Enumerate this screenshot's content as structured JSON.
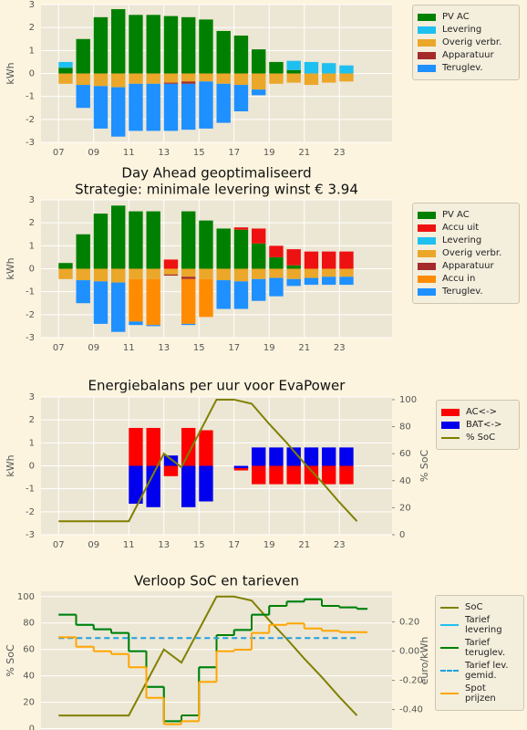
{
  "chart_data": [
    {
      "type": "bar",
      "stacked": true,
      "ylabel": "kWh",
      "grid": true,
      "legend": "right",
      "x": [
        7,
        8,
        9,
        10,
        11,
        12,
        13,
        14,
        15,
        16,
        17,
        18,
        19,
        20,
        21,
        22,
        23
      ],
      "xlim": [
        6,
        26
      ],
      "xticks": [
        {
          "value": 7,
          "label": "07"
        },
        {
          "value": 9,
          "label": "09"
        },
        11,
        13,
        15,
        17,
        19,
        21,
        23
      ],
      "ylim": [
        -3,
        3
      ],
      "yticks": [
        -3,
        -2,
        -1,
        0,
        1,
        2,
        3
      ],
      "series": [
        {
          "name": "PV AC",
          "color": "#008000",
          "values": [
            0.25,
            1.5,
            2.45,
            2.8,
            2.55,
            2.55,
            2.5,
            2.45,
            2.35,
            1.85,
            1.65,
            1.05,
            0.5,
            0.15,
            0,
            0,
            0
          ]
        },
        {
          "name": "Levering",
          "color": "#1ec0f0",
          "values": [
            0.25,
            0,
            0,
            0,
            0,
            0,
            0,
            0,
            0,
            0,
            0,
            0,
            0,
            0.4,
            0.5,
            0.45,
            0.35
          ]
        },
        {
          "name": "Overig verbr.",
          "color": "#eba72a",
          "values": [
            -0.45,
            -0.5,
            -0.55,
            -0.6,
            -0.45,
            -0.45,
            -0.4,
            -0.35,
            -0.35,
            -0.45,
            -0.5,
            -0.7,
            -0.45,
            -0.4,
            -0.5,
            -0.4,
            -0.35
          ]
        },
        {
          "name": "Apparatuur",
          "color": "#a52a2a",
          "values": [
            0,
            0,
            0,
            0,
            0,
            0,
            -0.05,
            -0.1,
            0,
            0,
            0,
            0,
            0,
            0,
            0,
            0,
            0
          ]
        },
        {
          "name": "Teruglev.",
          "color": "#1e90ff",
          "values": [
            0,
            -1.0,
            -1.85,
            -2.15,
            -2.05,
            -2.05,
            -2.05,
            -2.0,
            -2.05,
            -1.7,
            -1.15,
            -0.25,
            0,
            0,
            0,
            0,
            0
          ]
        }
      ]
    },
    {
      "type": "bar",
      "stacked": true,
      "title": "Day Ahead geoptimaliseerd",
      "subtitle": "Strategie: minimale levering winst € 3.94",
      "ylabel": "kWh",
      "grid": true,
      "legend": "right",
      "x": [
        7,
        8,
        9,
        10,
        11,
        12,
        13,
        14,
        15,
        16,
        17,
        18,
        19,
        20,
        21,
        22,
        23
      ],
      "xlim": [
        6,
        26
      ],
      "xticks": [
        {
          "value": 7,
          "label": "07"
        },
        {
          "value": 9,
          "label": "09"
        },
        11,
        13,
        15,
        17,
        19,
        21,
        23
      ],
      "ylim": [
        -3,
        3
      ],
      "yticks": [
        -3,
        -2,
        -1,
        0,
        1,
        2,
        3
      ],
      "series": [
        {
          "name": "PV AC",
          "color": "#008000",
          "values": [
            0.25,
            1.5,
            2.4,
            2.75,
            2.5,
            2.5,
            0,
            2.5,
            2.1,
            1.75,
            1.7,
            1.1,
            0.5,
            0.15,
            0,
            0,
            0
          ]
        },
        {
          "name": "Accu uit",
          "color": "#ee1111",
          "values": [
            0,
            0,
            0,
            0,
            0,
            0,
            0.4,
            0,
            0,
            0,
            0.1,
            0.65,
            0.5,
            0.7,
            0.75,
            0.75,
            0.75
          ]
        },
        {
          "name": "Levering",
          "color": "#1ec0f0",
          "values": [
            0,
            0,
            0,
            0,
            0,
            0,
            0,
            0,
            0,
            0,
            0,
            0,
            0,
            0,
            0,
            0,
            0
          ]
        },
        {
          "name": "Overig verbr.",
          "color": "#eba72a",
          "values": [
            -0.45,
            -0.5,
            -0.55,
            -0.6,
            -0.45,
            -0.45,
            -0.25,
            -0.35,
            -0.45,
            -0.5,
            -0.55,
            -0.45,
            -0.4,
            -0.45,
            -0.4,
            -0.35,
            -0.35
          ]
        },
        {
          "name": "Apparatuur",
          "color": "#a52a2a",
          "values": [
            0,
            0,
            0,
            0,
            0,
            0,
            -0.05,
            -0.1,
            0,
            0,
            0,
            0,
            0,
            0,
            0,
            0,
            0
          ]
        },
        {
          "name": "Accu in",
          "color": "#ff8c00",
          "values": [
            0,
            0,
            0,
            0,
            -1.85,
            -2.0,
            0,
            -1.95,
            -1.65,
            0,
            0,
            0,
            0,
            0,
            0,
            0,
            0
          ]
        },
        {
          "name": "Teruglev.",
          "color": "#1e90ff",
          "values": [
            0,
            -1.0,
            -1.85,
            -2.15,
            -0.15,
            -0.05,
            0,
            -0.05,
            0,
            -1.25,
            -1.2,
            -0.95,
            -0.8,
            -0.3,
            -0.3,
            -0.35,
            -0.35
          ]
        }
      ]
    },
    {
      "type": "bar",
      "stacked": false,
      "title": "Energiebalans per uur voor EvaPower",
      "ylabel": "kWh",
      "y2label": "% SoC",
      "grid": true,
      "legend": "right",
      "x": [
        7,
        8,
        9,
        10,
        11,
        12,
        13,
        14,
        15,
        16,
        17,
        18,
        19,
        20,
        21,
        22,
        23,
        24
      ],
      "xlim": [
        6,
        26
      ],
      "xticks": [
        {
          "value": 7,
          "label": "07"
        },
        {
          "value": 9,
          "label": "09"
        },
        11,
        13,
        15,
        17,
        19,
        21,
        23
      ],
      "ylim": [
        -3,
        3
      ],
      "yticks": [
        -3,
        -2,
        -1,
        0,
        1,
        2,
        3
      ],
      "y2lim": [
        0,
        102
      ],
      "y2ticks": [
        0,
        20,
        40,
        60,
        80,
        100
      ],
      "series": [
        {
          "name": "AC<->",
          "color": "#ff0000",
          "values": [
            0,
            0,
            0,
            0,
            1.65,
            1.65,
            -0.45,
            1.65,
            1.55,
            0,
            -0.2,
            -0.8,
            -0.8,
            -0.8,
            -0.8,
            -0.8,
            -0.8,
            null
          ]
        },
        {
          "name": "BAT<->",
          "color": "#0000ee",
          "values": [
            0,
            0,
            0,
            0,
            -1.65,
            -1.8,
            0.45,
            -1.8,
            -1.55,
            0,
            -0.1,
            0.8,
            0.8,
            0.8,
            0.8,
            0.8,
            0.8,
            null
          ]
        },
        {
          "name": "% SoC",
          "color": "#808000",
          "type": "line",
          "axis": "y2",
          "values": [
            10,
            10,
            10,
            10,
            10,
            35,
            60,
            50,
            75,
            100,
            100,
            97,
            82,
            68,
            53,
            39,
            24,
            10
          ]
        }
      ]
    },
    {
      "type": "line",
      "title": "Verloop SoC en tarieven",
      "ylabel": "% SoC",
      "y2label": "euro/kWh",
      "grid": true,
      "legend": "right",
      "x": [
        7,
        8,
        9,
        10,
        11,
        12,
        13,
        14,
        15,
        16,
        17,
        18,
        19,
        20,
        21,
        22,
        23,
        24
      ],
      "xlim": [
        6,
        26
      ],
      "ylim": [
        -1,
        104
      ],
      "yticks": [
        0,
        20,
        40,
        60,
        80,
        100
      ],
      "y2lim": [
        -0.54,
        0.41
      ],
      "y2ticks": [
        {
          "value": -0.4,
          "label": "-0.40"
        },
        {
          "value": -0.2,
          "label": "-0.20"
        },
        {
          "value": 0,
          "label": "0.00"
        },
        {
          "value": 0.2,
          "label": "0.20"
        }
      ],
      "series": [
        {
          "name": "SoC",
          "color": "#808000",
          "values": [
            10,
            10,
            10,
            10,
            10,
            35,
            60,
            50,
            75,
            100,
            100,
            97,
            82,
            68,
            53,
            39,
            24,
            10
          ]
        },
        {
          "name": "Tarief\nlevering",
          "color": "#1ec0f0",
          "axis": "y2",
          "step": true,
          "values": [
            0.25,
            0.18,
            0.15,
            0.125,
            0.0,
            -0.245,
            -0.48,
            -0.44,
            -0.11,
            0.11,
            0.145,
            0.25,
            0.31,
            0.34,
            0.355,
            0.31,
            0.3,
            0.29
          ]
        },
        {
          "name": "Tarief\nteruglev.",
          "color": "#008000",
          "axis": "y2",
          "step": true,
          "values": [
            0.25,
            0.18,
            0.15,
            0.125,
            0.0,
            -0.245,
            -0.48,
            -0.44,
            -0.11,
            0.11,
            0.145,
            0.25,
            0.31,
            0.34,
            0.355,
            0.31,
            0.3,
            0.29
          ]
        },
        {
          "name": "Tarief lev.\ngemid.",
          "color": "#1ea0e0",
          "axis": "y2",
          "dash": true,
          "values": [
            0.09,
            0.09,
            0.09,
            0.09,
            0.09,
            0.09,
            0.09,
            0.09,
            0.09,
            0.09,
            0.09,
            0.09,
            0.09,
            0.09,
            0.09,
            0.09,
            0.09,
            0.09
          ]
        },
        {
          "name": "Spot prijzen",
          "color": "#ffa500",
          "axis": "y2",
          "step": true,
          "values": [
            0.095,
            0.03,
            0.0,
            -0.02,
            -0.11,
            -0.32,
            -0.5,
            -0.48,
            -0.21,
            0.0,
            0.01,
            0.125,
            0.18,
            0.19,
            0.155,
            0.14,
            0.13,
            0.13
          ]
        }
      ]
    }
  ]
}
